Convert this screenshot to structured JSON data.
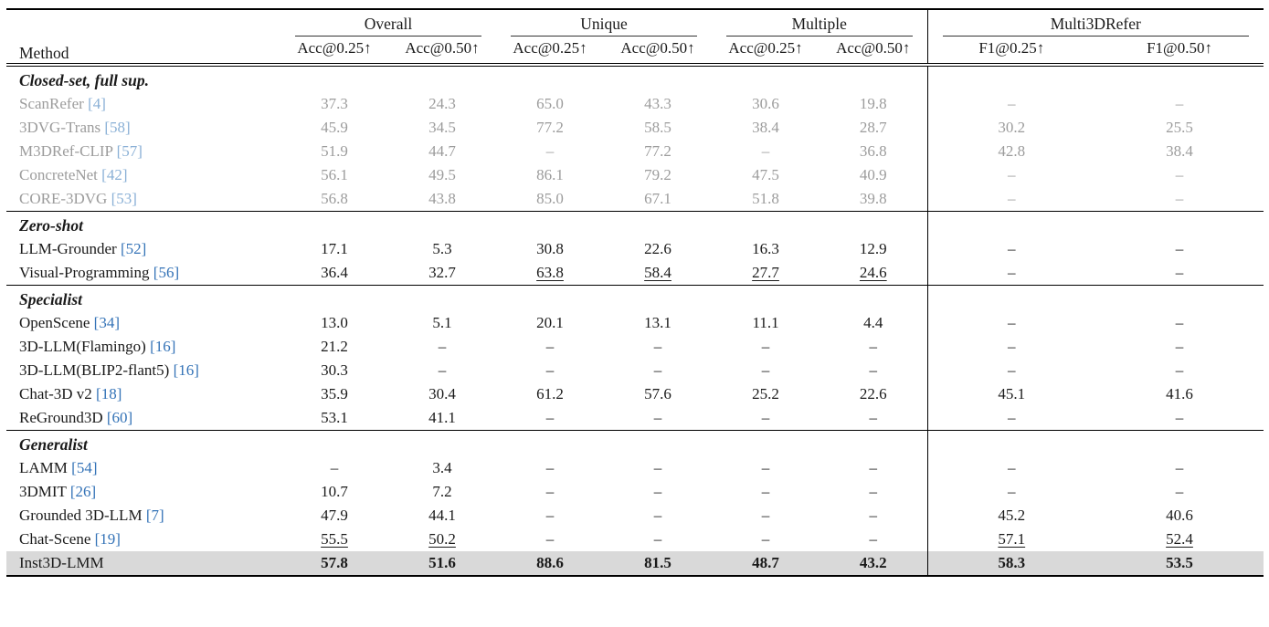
{
  "table": {
    "method_header": "Method",
    "groups": [
      {
        "label": "Overall",
        "cols": [
          "Acc@0.25↑",
          "Acc@0.50↑"
        ]
      },
      {
        "label": "Unique",
        "cols": [
          "Acc@0.25↑",
          "Acc@0.50↑"
        ]
      },
      {
        "label": "Multiple",
        "cols": [
          "Acc@0.25↑",
          "Acc@0.50↑"
        ]
      },
      {
        "label": "Multi3DRefer",
        "cols": [
          "F1@0.25↑",
          "F1@0.50↑"
        ]
      }
    ],
    "sections": [
      {
        "title": "Closed-set, full sup.",
        "muted": true,
        "rows": [
          {
            "method": "ScanRefer",
            "cite": "[4]",
            "values": [
              "37.3",
              "24.3",
              "65.0",
              "43.3",
              "30.6",
              "19.8",
              "–",
              "–"
            ]
          },
          {
            "method": "3DVG-Trans",
            "cite": "[58]",
            "values": [
              "45.9",
              "34.5",
              "77.2",
              "58.5",
              "38.4",
              "28.7",
              "30.2",
              "25.5"
            ]
          },
          {
            "method": "M3DRef-CLIP",
            "cite": "[57]",
            "values": [
              "51.9",
              "44.7",
              "–",
              "77.2",
              "–",
              "36.8",
              "42.8",
              "38.4"
            ]
          },
          {
            "method": "ConcreteNet",
            "cite": "[42]",
            "values": [
              "56.1",
              "49.5",
              "86.1",
              "79.2",
              "47.5",
              "40.9",
              "–",
              "–"
            ]
          },
          {
            "method": "CORE-3DVG",
            "cite": "[53]",
            "values": [
              "56.8",
              "43.8",
              "85.0",
              "67.1",
              "51.8",
              "39.8",
              "–",
              "–"
            ]
          }
        ]
      },
      {
        "title": "Zero-shot",
        "muted": false,
        "rows": [
          {
            "method": "LLM-Grounder",
            "cite": "[52]",
            "values": [
              "17.1",
              "5.3",
              "30.8",
              "22.6",
              "16.3",
              "12.9",
              "–",
              "–"
            ]
          },
          {
            "method": "Visual-Programming",
            "cite": "[56]",
            "values": [
              "36.4",
              "32.7",
              "63.8",
              "58.4",
              "27.7",
              "24.6",
              "–",
              "–"
            ],
            "underline": [
              2,
              3,
              4,
              5
            ]
          }
        ]
      },
      {
        "title": "Specialist",
        "muted": false,
        "rows": [
          {
            "method": "OpenScene",
            "cite": "[34]",
            "values": [
              "13.0",
              "5.1",
              "20.1",
              "13.1",
              "11.1",
              "4.4",
              "–",
              "–"
            ]
          },
          {
            "method": "3D-LLM(Flamingo)",
            "cite": "[16]",
            "values": [
              "21.2",
              "–",
              "–",
              "–",
              "–",
              "–",
              "–",
              "–"
            ]
          },
          {
            "method": "3D-LLM(BLIP2-flant5)",
            "cite": "[16]",
            "values": [
              "30.3",
              "–",
              "–",
              "–",
              "–",
              "–",
              "–",
              "–"
            ]
          },
          {
            "method": "Chat-3D v2",
            "cite": "[18]",
            "values": [
              "35.9",
              "30.4",
              "61.2",
              "57.6",
              "25.2",
              "22.6",
              "45.1",
              "41.6"
            ]
          },
          {
            "method": "ReGround3D",
            "cite": "[60]",
            "values": [
              "53.1",
              "41.1",
              "–",
              "–",
              "–",
              "–",
              "–",
              "–"
            ]
          }
        ]
      },
      {
        "title": "Generalist",
        "muted": false,
        "rows": [
          {
            "method": "LAMM",
            "cite": "[54]",
            "values": [
              "–",
              "3.4",
              "–",
              "–",
              "–",
              "–",
              "–",
              "–"
            ]
          },
          {
            "method": "3DMIT",
            "cite": "[26]",
            "values": [
              "10.7",
              "7.2",
              "–",
              "–",
              "–",
              "–",
              "–",
              "–"
            ]
          },
          {
            "method": "Grounded 3D-LLM",
            "cite": "[7]",
            "values": [
              "47.9",
              "44.1",
              "–",
              "–",
              "–",
              "–",
              "45.2",
              "40.6"
            ]
          },
          {
            "method": "Chat-Scene",
            "cite": "[19]",
            "values": [
              "55.5",
              "50.2",
              "–",
              "–",
              "–",
              "–",
              "57.1",
              "52.4"
            ],
            "underline": [
              0,
              1,
              6,
              7
            ]
          },
          {
            "method": "Inst3D-LMM",
            "cite": "",
            "values": [
              "57.8",
              "51.6",
              "88.6",
              "81.5",
              "48.7",
              "43.2",
              "58.3",
              "53.5"
            ],
            "highlight": true
          }
        ]
      }
    ]
  }
}
